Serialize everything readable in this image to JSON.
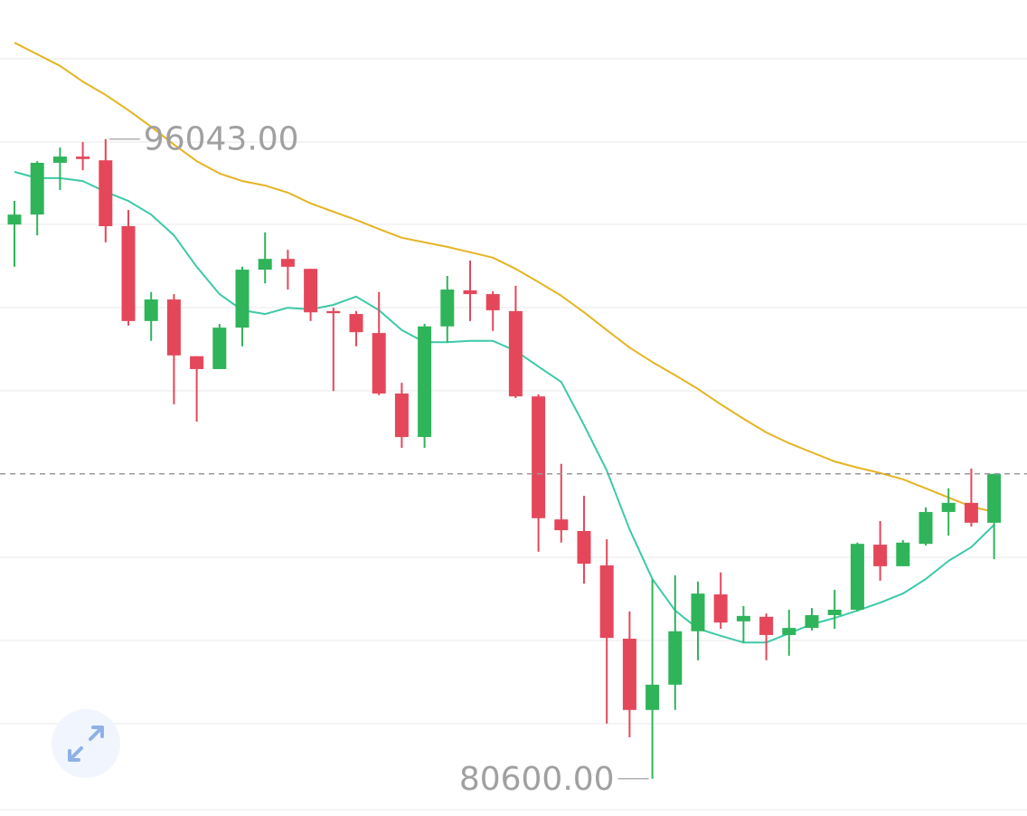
{
  "chart_data": {
    "type": "candlestick",
    "ylim": [
      79700,
      99400
    ],
    "up_color": "#2fb45a",
    "down_color": "#e5475a",
    "high_label": "96043.00",
    "low_label": "80600.00",
    "open": [
      93980,
      94220,
      95470,
      95620,
      95530,
      93940,
      91650,
      92170,
      90800,
      90490,
      91490,
      92890,
      93150,
      92910,
      91890,
      91820,
      91360,
      89900,
      88850,
      91520,
      92390,
      92300,
      91890,
      89830,
      86860,
      86580,
      85750,
      83980,
      82260,
      82870,
      84160,
      85050,
      84400,
      84510,
      84070,
      84240,
      84550,
      84680,
      86250,
      85730,
      86270,
      87040,
      87260,
      86780
    ],
    "high": [
      94550,
      95510,
      95840,
      95970,
      96043,
      94330,
      92350,
      92300,
      90800,
      91580,
      92960,
      93790,
      93370,
      92910,
      91970,
      91890,
      92350,
      90160,
      91580,
      92740,
      93110,
      92370,
      92500,
      89880,
      88200,
      87430,
      86380,
      84640,
      85420,
      85510,
      85360,
      85580,
      84770,
      84590,
      84680,
      84720,
      85160,
      86300,
      86820,
      86360,
      87150,
      87610,
      88090,
      87960
    ],
    "low": [
      92960,
      93720,
      94810,
      95290,
      93550,
      91540,
      91170,
      89640,
      89220,
      90490,
      91040,
      92560,
      92410,
      91650,
      89960,
      91040,
      89860,
      88590,
      88590,
      91140,
      91650,
      91410,
      89790,
      86080,
      86300,
      85310,
      81930,
      81600,
      80600,
      82260,
      83460,
      84220,
      83890,
      83460,
      83570,
      84180,
      84220,
      84640,
      85380,
      85730,
      86230,
      86470,
      86690,
      85900
    ],
    "close": [
      94220,
      95470,
      95620,
      95560,
      93940,
      91650,
      92170,
      90820,
      90490,
      91490,
      92890,
      93150,
      92960,
      91860,
      91840,
      91380,
      89900,
      88850,
      91520,
      92410,
      92300,
      91910,
      89830,
      86890,
      86600,
      85790,
      84000,
      82260,
      82870,
      84160,
      85070,
      84370,
      84530,
      84070,
      84240,
      84550,
      84680,
      86270,
      85730,
      86300,
      87040,
      87260,
      86780,
      87960
    ],
    "ma_lines": [
      {
        "color": "#3cc9a8",
        "values": [
          95250,
          95100,
          95100,
          95030,
          94770,
          94550,
          94220,
          93720,
          92960,
          92300,
          91910,
          91820,
          91970,
          91930,
          92040,
          92240,
          91910,
          91430,
          91140,
          91140,
          91170,
          91170,
          90930,
          90550,
          90180,
          89140,
          88040,
          86620,
          85420,
          84660,
          84220,
          84050,
          83890,
          83890,
          84110,
          84330,
          84480,
          84660,
          84850,
          85070,
          85420,
          85860,
          86190,
          86730
        ]
      },
      {
        "color": "#e6b422",
        "values": [
          98370,
          98090,
          97810,
          97430,
          97110,
          96740,
          96340,
          95910,
          95510,
          95210,
          95030,
          94920,
          94750,
          94490,
          94290,
          94090,
          93870,
          93660,
          93550,
          93440,
          93310,
          93180,
          92910,
          92590,
          92260,
          91860,
          91430,
          91010,
          90660,
          90340,
          90010,
          89640,
          89290,
          88960,
          88700,
          88480,
          88260,
          88110,
          87980,
          87830,
          87610,
          87390,
          87170,
          87040
        ]
      }
    ]
  }
}
